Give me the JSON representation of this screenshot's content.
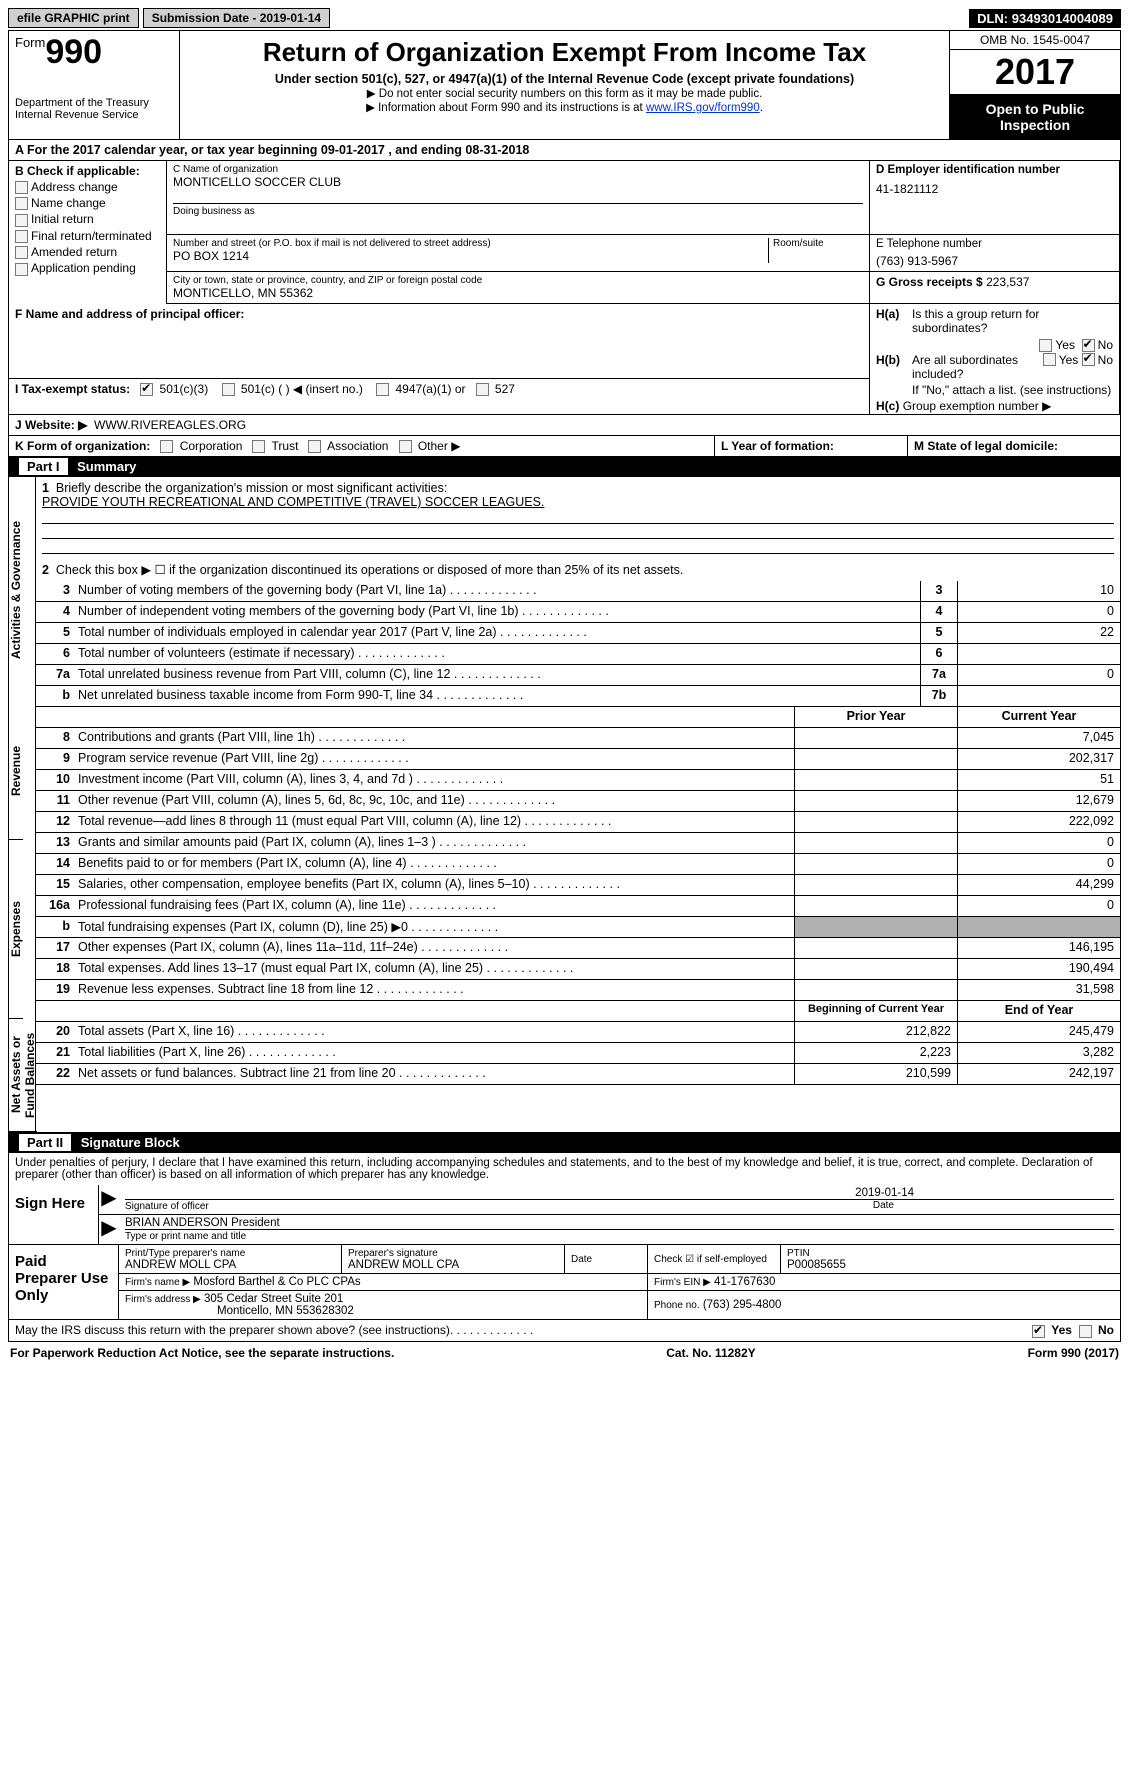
{
  "topbar": {
    "efile": "efile GRAPHIC print",
    "subdate_label": "Submission Date - ",
    "subdate": "2019-01-14",
    "dln_label": "DLN: ",
    "dln": "93493014004089"
  },
  "header": {
    "form_word": "Form",
    "form_num": "990",
    "dept1": "Department of the Treasury",
    "dept2": "Internal Revenue Service",
    "title": "Return of Organization Exempt From Income Tax",
    "sub1": "Under section 501(c), 527, or 4947(a)(1) of the Internal Revenue Code (except private foundations)",
    "sub2": "▶ Do not enter social security numbers on this form as it may be made public.",
    "sub3_a": "▶ Information about Form 990 and its instructions is at ",
    "sub3_link": "www.IRS.gov/form990",
    "omb": "OMB No. 1545-0047",
    "year": "2017",
    "open1": "Open to Public",
    "open2": "Inspection"
  },
  "rowA": {
    "prefix": "A  For the 2017 calendar year, or tax year beginning ",
    "begin": "09-01-2017",
    "mid": " , and ending ",
    "end": "08-31-2018"
  },
  "secB": {
    "title": "B Check if applicable:",
    "opts": [
      "Address change",
      "Name change",
      "Initial return",
      "Final return/terminated",
      "Amended return",
      "Application pending"
    ]
  },
  "secC": {
    "name_label": "C Name of organization",
    "name": "MONTICELLO SOCCER CLUB",
    "dba_label": "Doing business as",
    "dba": "",
    "street_label": "Number and street (or P.O. box if mail is not delivered to street address)",
    "room_label": "Room/suite",
    "street": "PO BOX 1214",
    "city_label": "City or town, state or province, country, and ZIP or foreign postal code",
    "city": "MONTICELLO, MN  55362"
  },
  "secD": {
    "label": "D Employer identification number",
    "val": "41-1821112"
  },
  "secE": {
    "label": "E Telephone number",
    "val": "(763) 913-5967"
  },
  "secG": {
    "label": "G Gross receipts $ ",
    "val": "223,537"
  },
  "secF": {
    "label": "F Name and address of principal officer:",
    "val": ""
  },
  "secH": {
    "ha": "Is this a group return for subordinates?",
    "hb": "Are all subordinates included?",
    "hnote": "If \"No,\" attach a list. (see instructions)",
    "hc": "Group exemption number ▶",
    "yes": "Yes",
    "no": "No"
  },
  "rowI": {
    "label": "I  Tax-exempt status:",
    "o1": "501(c)(3)",
    "o2": "501(c) (   ) ◀ (insert no.)",
    "o3": "4947(a)(1) or",
    "o4": "527"
  },
  "rowJ": {
    "label": "J  Website: ▶",
    "val": "WWW.RIVEREAGLES.ORG"
  },
  "rowK": {
    "label": "K Form of organization:",
    "opts": [
      "Corporation",
      "Trust",
      "Association",
      "Other ▶"
    ],
    "L": "L Year of formation:",
    "M": "M State of legal domicile:"
  },
  "part1": {
    "num": "Part I",
    "title": "Summary"
  },
  "summary": {
    "vtabs": [
      "Activities & Governance",
      "Revenue",
      "Expenses",
      "Net Assets or Fund Balances"
    ],
    "l1": "Briefly describe the organization's mission or most significant activities:",
    "l1v": "PROVIDE YOUTH RECREATIONAL AND COMPETITIVE (TRAVEL) SOCCER LEAGUES.",
    "l2": "Check this box ▶ ☐  if the organization discontinued its operations or disposed of more than 25% of its net assets.",
    "rows_top": [
      {
        "n": "3",
        "t": "Number of voting members of the governing body (Part VI, line 1a)",
        "b": "3",
        "v": "10"
      },
      {
        "n": "4",
        "t": "Number of independent voting members of the governing body (Part VI, line 1b)",
        "b": "4",
        "v": "0"
      },
      {
        "n": "5",
        "t": "Total number of individuals employed in calendar year 2017 (Part V, line 2a)",
        "b": "5",
        "v": "22"
      },
      {
        "n": "6",
        "t": "Total number of volunteers (estimate if necessary)",
        "b": "6",
        "v": ""
      },
      {
        "n": "7a",
        "t": "Total unrelated business revenue from Part VIII, column (C), line 12",
        "b": "7a",
        "v": "0"
      },
      {
        "n": "b",
        "t": "Net unrelated business taxable income from Form 990-T, line 34",
        "b": "7b",
        "v": ""
      }
    ],
    "col_hdr": {
      "py": "Prior Year",
      "cy": "Current Year"
    },
    "rows_rev": [
      {
        "n": "8",
        "t": "Contributions and grants (Part VIII, line 1h)",
        "py": "",
        "cy": "7,045"
      },
      {
        "n": "9",
        "t": "Program service revenue (Part VIII, line 2g)",
        "py": "",
        "cy": "202,317"
      },
      {
        "n": "10",
        "t": "Investment income (Part VIII, column (A), lines 3, 4, and 7d )",
        "py": "",
        "cy": "51"
      },
      {
        "n": "11",
        "t": "Other revenue (Part VIII, column (A), lines 5, 6d, 8c, 9c, 10c, and 11e)",
        "py": "",
        "cy": "12,679"
      },
      {
        "n": "12",
        "t": "Total revenue—add lines 8 through 11 (must equal Part VIII, column (A), line 12)",
        "py": "",
        "cy": "222,092"
      }
    ],
    "rows_exp": [
      {
        "n": "13",
        "t": "Grants and similar amounts paid (Part IX, column (A), lines 1–3 )",
        "py": "",
        "cy": "0"
      },
      {
        "n": "14",
        "t": "Benefits paid to or for members (Part IX, column (A), line 4)",
        "py": "",
        "cy": "0"
      },
      {
        "n": "15",
        "t": "Salaries, other compensation, employee benefits (Part IX, column (A), lines 5–10)",
        "py": "",
        "cy": "44,299"
      },
      {
        "n": "16a",
        "t": "Professional fundraising fees (Part IX, column (A), line 11e)",
        "py": "",
        "cy": "0"
      },
      {
        "n": "b",
        "t": "Total fundraising expenses (Part IX, column (D), line 25) ▶0",
        "py": "GREY",
        "cy": "GREY"
      },
      {
        "n": "17",
        "t": "Other expenses (Part IX, column (A), lines 11a–11d, 11f–24e)",
        "py": "",
        "cy": "146,195"
      },
      {
        "n": "18",
        "t": "Total expenses. Add lines 13–17 (must equal Part IX, column (A), line 25)",
        "py": "",
        "cy": "190,494"
      },
      {
        "n": "19",
        "t": "Revenue less expenses. Subtract line 18 from line 12",
        "py": "",
        "cy": "31,598"
      }
    ],
    "col_hdr2": {
      "py": "Beginning of Current Year",
      "cy": "End of Year"
    },
    "rows_net": [
      {
        "n": "20",
        "t": "Total assets (Part X, line 16)",
        "py": "212,822",
        "cy": "245,479"
      },
      {
        "n": "21",
        "t": "Total liabilities (Part X, line 26)",
        "py": "2,223",
        "cy": "3,282"
      },
      {
        "n": "22",
        "t": "Net assets or fund balances. Subtract line 21 from line 20",
        "py": "210,599",
        "cy": "242,197"
      }
    ]
  },
  "part2": {
    "num": "Part II",
    "title": "Signature Block"
  },
  "sig": {
    "perjury": "Under penalties of perjury, I declare that I have examined this return, including accompanying schedules and statements, and to the best of my knowledge and belief, it is true, correct, and complete. Declaration of preparer (other than officer) is based on all information of which preparer has any knowledge.",
    "sign_here": "Sign Here",
    "date": "2019-01-14",
    "sig_label": "Signature of officer",
    "date_label": "Date",
    "name": "BRIAN ANDERSON President",
    "name_label": "Type or print name and title",
    "paid": "Paid Preparer Use Only",
    "p_name_l": "Print/Type preparer's name",
    "p_name": "ANDREW MOLL CPA",
    "p_sig_l": "Preparer's signature",
    "p_sig": "ANDREW MOLL CPA",
    "p_date_l": "Date",
    "p_self": "Check ☑ if self-employed",
    "ptin_l": "PTIN",
    "ptin": "P00085655",
    "firm_l": "Firm's name    ▶",
    "firm": "Mosford Barthel & Co PLC CPAs",
    "ein_l": "Firm's EIN ▶",
    "ein": "41-1767630",
    "addr_l": "Firm's address ▶",
    "addr1": "305 Cedar Street Suite 201",
    "addr2": "Monticello, MN  553628302",
    "phone_l": "Phone no.",
    "phone": "(763) 295-4800"
  },
  "footer": {
    "discuss": "May the IRS discuss this return with the preparer shown above? (see instructions)",
    "yes": "Yes",
    "no": "No",
    "pra": "For Paperwork Reduction Act Notice, see the separate instructions.",
    "cat": "Cat. No. 11282Y",
    "form": "Form 990 (2017)"
  }
}
